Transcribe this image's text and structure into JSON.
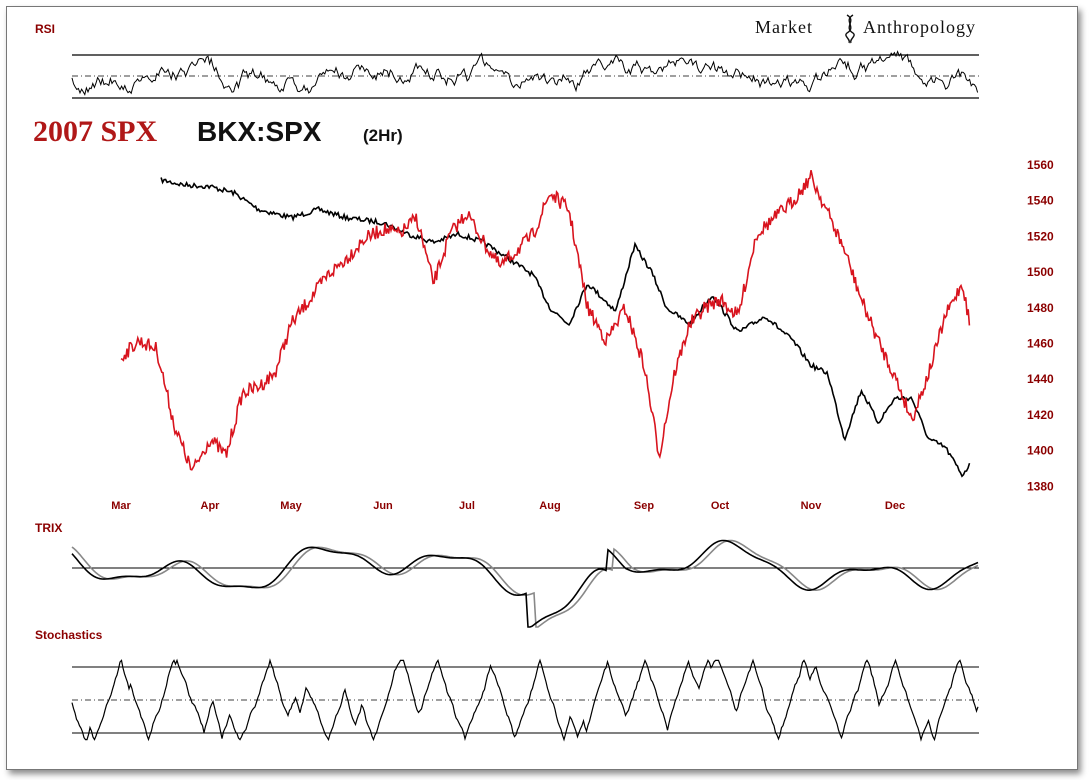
{
  "title": {
    "part1": "2007 SPX",
    "part2": "BKX:SPX",
    "part3": "(2Hr)"
  },
  "brand": {
    "left": "Market",
    "right": "Anthropology"
  },
  "colors": {
    "spx": "#d8141e",
    "bkx_spx": "#000000",
    "label": "#8b0000",
    "trix_signal": "#888888"
  },
  "panels": {
    "rsi_label": "RSI",
    "trix_label": "TRIX",
    "stoch_label": "Stochastics"
  },
  "chart_data": {
    "type": "line",
    "title": "2007 SPX BKX:SPX (2Hr)",
    "x_tick_labels": [
      "Mar",
      "Apr",
      "May",
      "Jun",
      "Jul",
      "Aug",
      "Sep",
      "Oct",
      "Nov",
      "Dec"
    ],
    "y_tick_labels": [
      "1560",
      "1540",
      "1520",
      "1500",
      "1480",
      "1460",
      "1440",
      "1420",
      "1400",
      "1380"
    ],
    "ylim": [
      1372,
      1572
    ],
    "grid": false,
    "series": [
      {
        "name": "2007 SPX",
        "x": [
          0.0,
          0.2,
          0.4,
          0.6,
          0.8,
          1.0,
          1.2,
          1.4,
          1.6,
          1.8,
          2.0,
          2.2,
          2.4,
          2.6,
          2.8,
          3.0,
          3.2,
          3.4,
          3.6,
          3.8,
          4.0,
          4.2,
          4.4,
          4.6,
          4.8,
          5.0,
          5.2,
          5.4,
          5.6,
          5.8,
          6.0,
          6.2,
          6.4,
          6.6,
          6.8,
          7.0,
          7.2,
          7.4,
          7.6,
          7.8,
          8.0,
          8.2,
          8.4,
          8.6,
          8.8,
          9.0,
          9.2,
          9.4,
          9.6,
          9.8,
          9.9
        ],
        "values": [
          1450,
          1460,
          1455,
          1408,
          1380,
          1400,
          1390,
          1428,
          1432,
          1440,
          1470,
          1485,
          1500,
          1510,
          1522,
          1528,
          1525,
          1535,
          1495,
          1525,
          1538,
          1520,
          1505,
          1515,
          1525,
          1550,
          1540,
          1480,
          1460,
          1480,
          1445,
          1390,
          1440,
          1470,
          1480,
          1485,
          1475,
          1525,
          1535,
          1545,
          1560,
          1538,
          1515,
          1485,
          1460,
          1438,
          1412,
          1440,
          1475,
          1495,
          1468
        ]
      },
      {
        "name": "BKX:SPX",
        "x": [
          0.45,
          0.7,
          1.0,
          1.3,
          1.6,
          2.0,
          2.3,
          2.6,
          3.0,
          3.3,
          3.6,
          3.9,
          4.2,
          4.5,
          4.8,
          5.0,
          5.2,
          5.4,
          5.7,
          5.9,
          6.1,
          6.3,
          6.6,
          6.9,
          7.2,
          7.5,
          7.8,
          8.0,
          8.2,
          8.4,
          8.6,
          8.8,
          9.0,
          9.2,
          9.4,
          9.6,
          9.8,
          9.9
        ],
        "values": [
          1558,
          1555,
          1554,
          1550,
          1540,
          1535,
          1540,
          1535,
          1532,
          1525,
          1520,
          1525,
          1520,
          1510,
          1500,
          1480,
          1470,
          1495,
          1478,
          1518,
          1502,
          1480,
          1470,
          1488,
          1465,
          1475,
          1460,
          1445,
          1440,
          1400,
          1430,
          1410,
          1425,
          1425,
          1400,
          1395,
          1378,
          1385
        ]
      }
    ]
  }
}
